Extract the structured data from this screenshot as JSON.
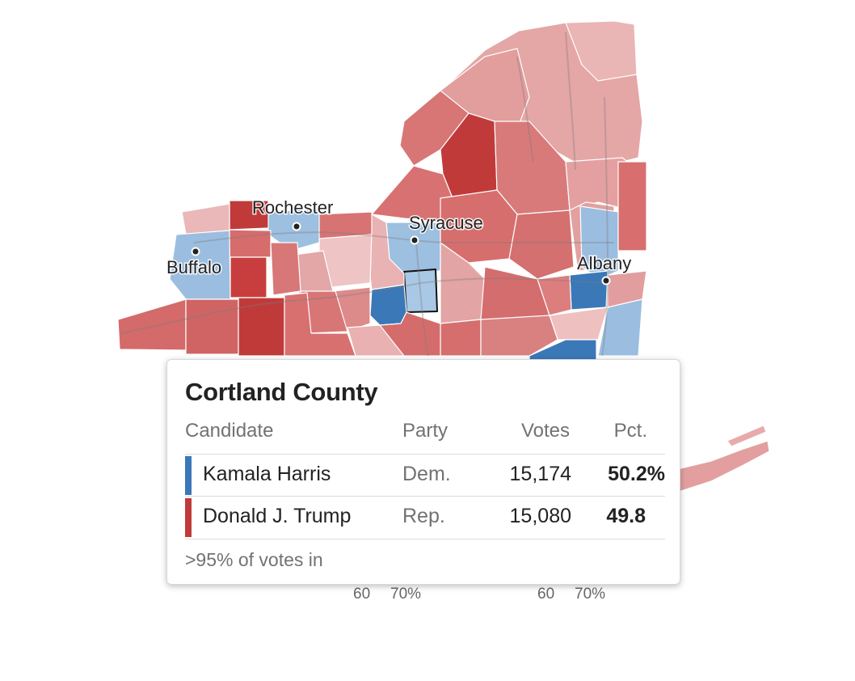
{
  "map": {
    "cities": [
      {
        "id": "rochester",
        "label": "Rochester"
      },
      {
        "id": "syracuse",
        "label": "Syracuse"
      },
      {
        "id": "buffalo",
        "label": "Buffalo"
      },
      {
        "id": "albany",
        "label": "Albany"
      }
    ],
    "colors": {
      "dem_strong": "#3a78b8",
      "dem_light": "#9bbde0",
      "rep_strong": "#c13a3a",
      "rep_mid": "#d46a6a",
      "rep_light": "#e8aaaa",
      "rep_pale": "#efc3c3"
    }
  },
  "legend": {
    "ticks_left": [
      "60",
      "70%"
    ],
    "ticks_right": [
      "60",
      "70%"
    ]
  },
  "tooltip": {
    "county": "Cortland County",
    "headers": {
      "candidate": "Candidate",
      "party": "Party",
      "votes": "Votes",
      "pct": "Pct."
    },
    "rows": [
      {
        "name": "Kamala Harris",
        "party": "Dem.",
        "votes": "15,174",
        "pct": "50.2%",
        "color": "#3a78b8"
      },
      {
        "name": "Donald J. Trump",
        "party": "Rep.",
        "votes": "15,080",
        "pct": "49.8",
        "color": "#c13a3a"
      }
    ],
    "footnote": ">95% of votes in"
  }
}
